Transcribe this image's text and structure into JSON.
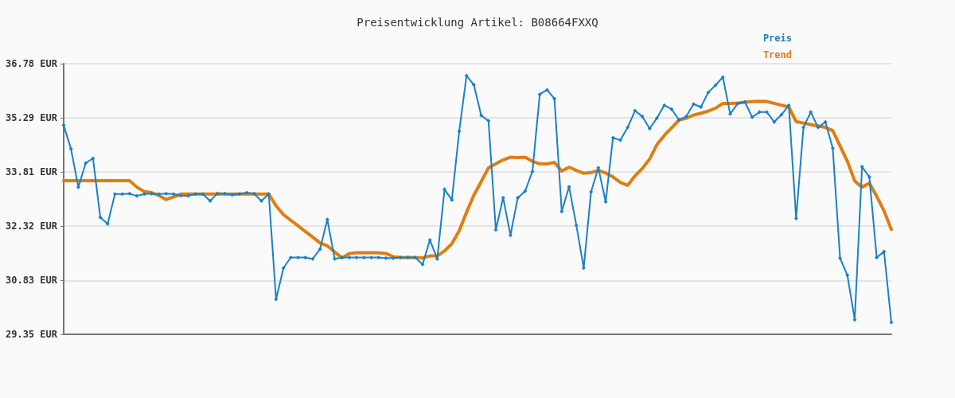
{
  "chart_data": {
    "type": "line",
    "title": "Preisentwicklung Artikel: B08664FXXQ",
    "categories": [
      null,
      null,
      null,
      null,
      null,
      null,
      null,
      null,
      null,
      null,
      null,
      null,
      null,
      null,
      null,
      null,
      null,
      null,
      null,
      null,
      null,
      null,
      null,
      null,
      null,
      null,
      null,
      null,
      null,
      null,
      null,
      null,
      null,
      null,
      null,
      null,
      null,
      null,
      null,
      null,
      null,
      null,
      null,
      null,
      null,
      null,
      null,
      null,
      null,
      null,
      null,
      null,
      null,
      null,
      null,
      null,
      null,
      null,
      null,
      null,
      null,
      null,
      null,
      null,
      null,
      null,
      null,
      null,
      null,
      null,
      null,
      null,
      null,
      null,
      null,
      null,
      null,
      null,
      null,
      null,
      null,
      null,
      null,
      null,
      null,
      null,
      null,
      null,
      null,
      null,
      null,
      null,
      null,
      null,
      null,
      null,
      null,
      null,
      null,
      null,
      null,
      null,
      null,
      null,
      null,
      null,
      null,
      null,
      null,
      null,
      null,
      null,
      null,
      null
    ],
    "series": [
      {
        "name": "Preis",
        "color": "#1a80c8",
        "marker": "diamond",
        "values": [
          35.09,
          34.44,
          33.39,
          34.05,
          34.18,
          32.56,
          32.38,
          33.2,
          33.2,
          33.21,
          33.15,
          33.2,
          33.21,
          33.2,
          33.21,
          33.2,
          33.16,
          33.15,
          33.2,
          33.2,
          33.01,
          33.22,
          33.21,
          33.18,
          33.2,
          33.24,
          33.21,
          33.01,
          33.2,
          30.31,
          31.17,
          31.46,
          31.46,
          31.46,
          31.42,
          31.69,
          32.5,
          31.42,
          31.46,
          31.46,
          31.46,
          31.46,
          31.46,
          31.46,
          31.44,
          31.44,
          31.46,
          31.46,
          31.46,
          31.27,
          31.94,
          31.42,
          33.33,
          33.04,
          34.92,
          36.45,
          36.2,
          35.36,
          35.21,
          32.22,
          33.1,
          32.07,
          33.1,
          33.28,
          33.82,
          35.94,
          36.06,
          35.82,
          32.72,
          33.4,
          32.34,
          31.17,
          33.26,
          33.92,
          32.99,
          34.75,
          34.68,
          35.03,
          35.49,
          35.33,
          35.0,
          35.29,
          35.64,
          35.53,
          35.24,
          35.33,
          35.67,
          35.59,
          35.99,
          36.19,
          36.41,
          35.4,
          35.68,
          35.73,
          35.31,
          35.45,
          35.45,
          35.18,
          35.38,
          35.64,
          32.53,
          35.03,
          35.45,
          35.03,
          35.18,
          34.46,
          31.44,
          30.97,
          29.75,
          33.95,
          33.67,
          31.46,
          31.62,
          29.68
        ]
      },
      {
        "name": "Trend",
        "color": "#e07d10",
        "marker": "none",
        "values": [
          33.57,
          33.57,
          33.57,
          33.57,
          33.57,
          33.57,
          33.57,
          33.57,
          33.57,
          33.57,
          33.39,
          33.27,
          33.24,
          33.16,
          33.05,
          33.12,
          33.2,
          33.2,
          33.2,
          33.2,
          33.2,
          33.2,
          33.2,
          33.2,
          33.2,
          33.2,
          33.2,
          33.2,
          33.2,
          32.88,
          32.64,
          32.48,
          32.33,
          32.17,
          32.02,
          31.86,
          31.78,
          31.61,
          31.45,
          31.57,
          31.59,
          31.59,
          31.59,
          31.59,
          31.57,
          31.48,
          31.46,
          31.46,
          31.46,
          31.45,
          31.5,
          31.5,
          31.64,
          31.84,
          32.19,
          32.7,
          33.17,
          33.54,
          33.92,
          34.03,
          34.14,
          34.21,
          34.2,
          34.21,
          34.1,
          34.03,
          34.03,
          34.07,
          33.83,
          33.94,
          33.85,
          33.77,
          33.79,
          33.85,
          33.78,
          33.67,
          33.52,
          33.44,
          33.7,
          33.9,
          34.16,
          34.56,
          34.81,
          35.02,
          35.23,
          35.28,
          35.37,
          35.42,
          35.48,
          35.56,
          35.69,
          35.69,
          35.7,
          35.72,
          35.74,
          35.75,
          35.74,
          35.69,
          35.64,
          35.59,
          35.19,
          35.15,
          35.11,
          35.07,
          35.03,
          34.94,
          34.52,
          34.1,
          33.56,
          33.39,
          33.5,
          33.14,
          32.74,
          32.23
        ]
      }
    ],
    "ylim": [
      29.35,
      36.78
    ],
    "yticks": [
      {
        "value": 29.35,
        "label": "29.35 EUR"
      },
      {
        "value": 30.83,
        "label": "30.83 EUR"
      },
      {
        "value": 32.32,
        "label": "32.32 EUR"
      },
      {
        "value": 33.81,
        "label": "33.81 EUR"
      },
      {
        "value": 35.29,
        "label": "35.29 EUR"
      },
      {
        "value": 36.78,
        "label": "36.78 EUR"
      }
    ],
    "grid": "y",
    "legend": "top right",
    "line_style": "solid"
  }
}
